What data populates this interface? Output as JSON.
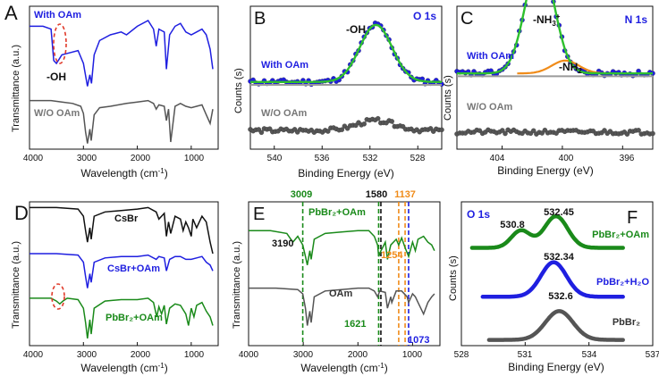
{
  "figure": {
    "colors": {
      "black": "#111111",
      "blue": "#1f1fe0",
      "green": "#1a8a1a",
      "gray": "#555555",
      "orange": "#f08c1a",
      "fitGreen": "#2ec02e",
      "fitGray": "#9a9a9a"
    }
  },
  "chart_data": [
    {
      "panel": "A",
      "type": "line",
      "title": "",
      "xlabel": "Wavelength (cm⁻¹)",
      "ylabel": "Transmittance (a.u.)",
      "xlim": [
        4000,
        500
      ],
      "xticks": [
        4000,
        3000,
        2000,
        1000
      ],
      "annotations": [
        {
          "text": "-OH",
          "x": 3450
        }
      ],
      "series": [
        {
          "name": "With OAm",
          "color": "blue",
          "x": [
            4000,
            3750,
            3600,
            3550,
            3500,
            3450,
            3400,
            3300,
            3100,
            3000,
            2925,
            2880,
            2850,
            2800,
            2700,
            2500,
            2300,
            2200,
            2000,
            1800,
            1700,
            1650,
            1600,
            1500,
            1460,
            1400,
            1300,
            1200,
            1100,
            1000,
            900,
            800,
            720,
            650,
            600
          ],
          "y": [
            0.86,
            0.86,
            0.84,
            0.62,
            0.6,
            0.63,
            0.66,
            0.67,
            0.69,
            0.6,
            0.44,
            0.52,
            0.46,
            0.66,
            0.76,
            0.8,
            0.82,
            0.8,
            0.86,
            0.9,
            0.84,
            0.72,
            0.84,
            0.82,
            0.56,
            0.8,
            0.86,
            0.88,
            0.82,
            0.8,
            0.82,
            0.84,
            0.8,
            0.7,
            0.56
          ]
        },
        {
          "name": "W/O OAm",
          "color": "gray",
          "x": [
            4000,
            3600,
            3400,
            3200,
            3050,
            3000,
            2960,
            2925,
            2880,
            2855,
            2800,
            2700,
            2500,
            2200,
            2000,
            1800,
            1700,
            1650,
            1600,
            1500,
            1460,
            1420,
            1380,
            1300,
            1200,
            1100,
            1000,
            900,
            800,
            720,
            650,
            600
          ],
          "y": [
            0.34,
            0.34,
            0.33,
            0.32,
            0.3,
            0.25,
            0.12,
            0.04,
            0.14,
            0.06,
            0.24,
            0.29,
            0.3,
            0.32,
            0.33,
            0.34,
            0.32,
            0.28,
            0.31,
            0.3,
            0.2,
            0.28,
            0.05,
            0.3,
            0.32,
            0.3,
            0.29,
            0.3,
            0.31,
            0.24,
            0.18,
            0.28
          ]
        }
      ]
    },
    {
      "panel": "B",
      "type": "scatter",
      "title": "O 1s",
      "xlabel": "Binding Energy (eV)",
      "ylabel": "Counts (s)",
      "xlim": [
        542,
        526
      ],
      "xticks": [
        540,
        536,
        532,
        528
      ],
      "annotations": [
        {
          "text": "-OH",
          "x": 531.5
        }
      ],
      "series": [
        {
          "name": "With OAm",
          "color": "blue",
          "kind": "points",
          "center": 531.5,
          "width": 1.35,
          "amplitude": 0.4,
          "baseline": 0.47
        },
        {
          "name": "W/O OAm",
          "color": "gray",
          "kind": "points",
          "center": 531.5,
          "width": 1.6,
          "amplitude": 0.07,
          "baseline": 0.13
        }
      ]
    },
    {
      "panel": "C",
      "type": "scatter",
      "title": "N 1s",
      "xlabel": "Binding Energy (eV)",
      "ylabel": "Counts (s)",
      "xlim": [
        407,
        394
      ],
      "xticks": [
        404,
        400,
        396
      ],
      "annotations": [
        {
          "text": "-NH₃⁺",
          "x": 401.5
        },
        {
          "text": "-NH₂",
          "x": 399.8
        }
      ],
      "series": [
        {
          "name": "With OAm",
          "color": "blue",
          "kind": "points",
          "center": 401.5,
          "width": 0.95,
          "amplitude": 0.8,
          "baseline": 0.53
        },
        {
          "name": "W/O OAm",
          "color": "gray",
          "kind": "points",
          "center": 401.5,
          "width": 1.0,
          "amplitude": 0.0,
          "baseline": 0.12
        }
      ]
    },
    {
      "panel": "D",
      "type": "line",
      "title": "",
      "xlabel": "Wavelength (cm⁻¹)",
      "ylabel": "Transmittance (a.u.)",
      "xlim": [
        4000,
        500
      ],
      "xticks": [
        4000,
        3000,
        2000,
        1000
      ],
      "series": [
        {
          "name": "CsBr",
          "color": "black",
          "x": [
            4000,
            3500,
            3100,
            3000,
            2960,
            2925,
            2880,
            2855,
            2800,
            2600,
            2300,
            2000,
            1800,
            1650,
            1600,
            1500,
            1460,
            1420,
            1380,
            1300,
            1200,
            1150,
            1100,
            1050,
            1000,
            970,
            900,
            800,
            720,
            650,
            600
          ],
          "y": [
            0.96,
            0.96,
            0.95,
            0.9,
            0.8,
            0.72,
            0.82,
            0.74,
            0.9,
            0.93,
            0.94,
            0.95,
            0.96,
            0.93,
            0.88,
            0.92,
            0.76,
            0.86,
            0.78,
            0.9,
            0.88,
            0.8,
            0.86,
            0.82,
            0.76,
            0.88,
            0.82,
            0.9,
            0.86,
            0.72,
            0.64
          ]
        },
        {
          "name": "CsBr+OAm",
          "color": "blue",
          "x": [
            4000,
            3500,
            3100,
            3000,
            2960,
            2925,
            2880,
            2855,
            2800,
            2600,
            2300,
            2000,
            1800,
            1650,
            1600,
            1500,
            1460,
            1400,
            1300,
            1200,
            1100,
            1000,
            900,
            800,
            720,
            650,
            600
          ],
          "y": [
            0.64,
            0.64,
            0.63,
            0.58,
            0.48,
            0.4,
            0.5,
            0.44,
            0.58,
            0.61,
            0.62,
            0.62,
            0.63,
            0.6,
            0.62,
            0.61,
            0.52,
            0.6,
            0.62,
            0.62,
            0.6,
            0.6,
            0.61,
            0.62,
            0.58,
            0.56,
            0.52
          ]
        },
        {
          "name": "PbBr₂+OAm",
          "color": "green",
          "x": [
            4000,
            3600,
            3500,
            3440,
            3380,
            3300,
            3100,
            3000,
            2960,
            2925,
            2880,
            2855,
            2800,
            2600,
            2300,
            2000,
            1800,
            1700,
            1640,
            1600,
            1550,
            1500,
            1460,
            1400,
            1300,
            1200,
            1100,
            1050,
            1000,
            950,
            900,
            800,
            720,
            650,
            600
          ],
          "y": [
            0.33,
            0.33,
            0.31,
            0.29,
            0.31,
            0.33,
            0.32,
            0.26,
            0.16,
            0.05,
            0.18,
            0.08,
            0.26,
            0.31,
            0.32,
            0.32,
            0.33,
            0.3,
            0.2,
            0.27,
            0.22,
            0.28,
            0.15,
            0.26,
            0.29,
            0.28,
            0.22,
            0.14,
            0.26,
            0.2,
            0.28,
            0.3,
            0.24,
            0.2,
            0.14
          ]
        }
      ]
    },
    {
      "panel": "E",
      "type": "line",
      "title": "",
      "xlabel": "Wavelength (cm⁻¹)",
      "ylabel": "Transmittance (a.u.)",
      "xlim": [
        4000,
        500
      ],
      "xticks": [
        4000,
        3000,
        2000,
        1000
      ],
      "markers": [
        {
          "x": 3009,
          "label": "3009",
          "color": "green"
        },
        {
          "x": 1621,
          "label": "1621",
          "color": "green"
        },
        {
          "x": 1580,
          "label": "1580",
          "color": "black"
        },
        {
          "x": 1254,
          "label": "1254",
          "color": "orange"
        },
        {
          "x": 1137,
          "label": "1137",
          "color": "orange"
        },
        {
          "x": 1073,
          "label": "1073",
          "color": "blue"
        }
      ],
      "annotations": [
        {
          "text": "3190",
          "x": 3190
        }
      ],
      "series": [
        {
          "name": "PbBr₂+OAm",
          "color": "green",
          "x": [
            4000,
            3600,
            3300,
            3190,
            3100,
            3009,
            2960,
            2925,
            2880,
            2855,
            2800,
            2600,
            2300,
            2000,
            1800,
            1700,
            1640,
            1621,
            1580,
            1550,
            1500,
            1460,
            1400,
            1300,
            1254,
            1200,
            1137,
            1073,
            1000,
            950,
            900,
            800,
            720,
            650,
            600
          ],
          "y": [
            0.8,
            0.8,
            0.78,
            0.72,
            0.76,
            0.7,
            0.62,
            0.56,
            0.66,
            0.6,
            0.74,
            0.78,
            0.79,
            0.8,
            0.8,
            0.76,
            0.7,
            0.62,
            0.66,
            0.68,
            0.72,
            0.6,
            0.7,
            0.74,
            0.7,
            0.75,
            0.68,
            0.62,
            0.72,
            0.66,
            0.74,
            0.76,
            0.72,
            0.7,
            0.66
          ]
        },
        {
          "name": "OAm",
          "color": "gray",
          "x": [
            4000,
            3500,
            3100,
            3009,
            2960,
            2925,
            2880,
            2855,
            2800,
            2600,
            2300,
            2000,
            1800,
            1700,
            1640,
            1621,
            1600,
            1500,
            1460,
            1400,
            1380,
            1300,
            1200,
            1100,
            1073,
            1000,
            950,
            900,
            800,
            720,
            650,
            600
          ],
          "y": [
            0.4,
            0.4,
            0.39,
            0.36,
            0.26,
            0.14,
            0.24,
            0.16,
            0.34,
            0.38,
            0.39,
            0.4,
            0.4,
            0.38,
            0.34,
            0.36,
            0.38,
            0.37,
            0.26,
            0.34,
            0.3,
            0.38,
            0.38,
            0.34,
            0.3,
            0.36,
            0.34,
            0.3,
            0.22,
            0.3,
            0.34,
            0.36
          ]
        }
      ]
    },
    {
      "panel": "F",
      "type": "line",
      "title": "O 1s",
      "xlabel": "Binding Energy (eV)",
      "ylabel": "Counts (s)",
      "xlim": [
        528,
        537
      ],
      "xticks": [
        528,
        531,
        534,
        537
      ],
      "series": [
        {
          "name": "PbBr₂+OAm",
          "color": "green",
          "peaks": [
            {
              "center": 530.8,
              "label": "530.8"
            },
            {
              "center": 532.45,
              "label": "532.45"
            }
          ]
        },
        {
          "name": "PbBr₂+H₂O",
          "color": "blue",
          "peaks": [
            {
              "center": 532.34,
              "label": "532.34"
            }
          ]
        },
        {
          "name": "PbBr₂",
          "color": "gray",
          "peaks": [
            {
              "center": 532.6,
              "label": "532.6"
            }
          ]
        }
      ]
    }
  ],
  "panels": {
    "A": {
      "letter": "A",
      "ylabel": "Transmittance (a.u.)",
      "xlabel_main": "Wavelength (cm",
      "xlabel_sup": "-1",
      "xlabel_end": ")",
      "legend": [
        "With OAm",
        "W/O OAm"
      ],
      "ticks": [
        "4000",
        "3000",
        "2000",
        "1000"
      ],
      "note": "-OH"
    },
    "B": {
      "letter": "B",
      "ylabel": "Counts (s)",
      "xlabel": "Binding Energy (eV)",
      "title": "O 1s",
      "legend": [
        "With OAm",
        "W/O OAm"
      ],
      "ticks": [
        "540",
        "536",
        "532",
        "528"
      ],
      "note": "-OH"
    },
    "C": {
      "letter": "C",
      "ylabel": "Counts (s)",
      "xlabel": "Binding Energy (eV)",
      "title": "N 1s",
      "legend": [
        "With OAm",
        "W/O OAm"
      ],
      "ticks": [
        "404",
        "400",
        "396"
      ],
      "peak1_main": "-NH",
      "peak1_sub": "3",
      "peak1_sup": "+",
      "peak2_main": "-NH",
      "peak2_sub": "2"
    },
    "D": {
      "letter": "D",
      "ylabel": "Transmittance (a.u.)",
      "xlabel_main": "Wavelength (cm",
      "xlabel_sup": "-1",
      "xlabel_end": ")",
      "labels": [
        "CsBr",
        "CsBr+OAm",
        "PbBr₂+OAm"
      ],
      "ticks": [
        "4000",
        "3000",
        "2000",
        "1000"
      ]
    },
    "E": {
      "letter": "E",
      "ylabel": "Transmittance (a.u.)",
      "xlabel_main": "Wavelength (cm",
      "xlabel_sup": "-1",
      "xlabel_end": ")",
      "labels": [
        "PbBr₂+OAm",
        "OAm"
      ],
      "ticks": [
        "4000",
        "3000",
        "2000",
        "1000"
      ],
      "note": "3190",
      "marks": [
        "3009",
        "1580",
        "1137",
        "1254",
        "1621",
        "1073"
      ]
    },
    "F": {
      "letter": "F",
      "ylabel": "Counts (s)",
      "xlabel": "Binding Energy (eV)",
      "title": "O 1s",
      "labels": [
        "PbBr₂+OAm",
        "PbBr₂+H₂O",
        "PbBr₂"
      ],
      "ticks": [
        "528",
        "531",
        "534",
        "537"
      ],
      "peaks": [
        "530.8",
        "532.45",
        "532.34",
        "532.6"
      ]
    }
  }
}
